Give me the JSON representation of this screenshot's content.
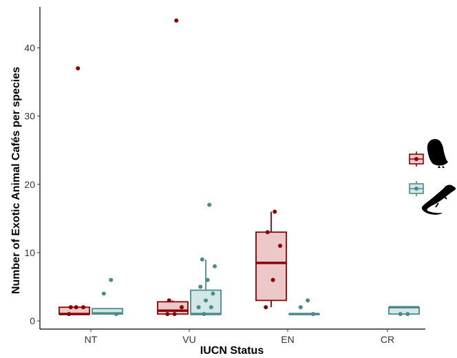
{
  "chart_data": {
    "type": "boxplot",
    "xlabel": "IUCN Status",
    "ylabel": "Number of Exotic Animal Cafés per species",
    "categories": [
      "NT",
      "VU",
      "EN",
      "CR"
    ],
    "ylim": [
      -1.2,
      46
    ],
    "yticks": [
      0,
      10,
      20,
      30,
      40
    ],
    "grid": false,
    "legend": "right",
    "colors": {
      "birds": "#8b0000",
      "reptiles": "#4a8a8a",
      "birds_fill": "#ecc8c8",
      "reptiles_fill": "#d3e8e6"
    },
    "series": [
      {
        "icon": "owl-icon",
        "color": "#8b0000",
        "boxes": [
          {
            "category": "NT",
            "q1": 1,
            "median": 1,
            "q3": 2,
            "whisker_low": 1,
            "whisker_high": 2
          },
          {
            "category": "VU",
            "q1": 1,
            "median": 1.5,
            "q3": 2.8,
            "whisker_low": 1,
            "whisker_high": 3
          },
          {
            "category": "EN",
            "q1": 3,
            "median": 8.5,
            "q3": 13,
            "whisker_low": 2,
            "whisker_high": 16
          }
        ],
        "points": [
          {
            "category": "NT",
            "y": 37
          },
          {
            "category": "NT",
            "y": 2
          },
          {
            "category": "NT",
            "y": 2
          },
          {
            "category": "NT",
            "y": 2
          },
          {
            "category": "NT",
            "y": 1
          },
          {
            "category": "VU",
            "y": 44
          },
          {
            "category": "VU",
            "y": 3
          },
          {
            "category": "VU",
            "y": 2
          },
          {
            "category": "VU",
            "y": 1
          },
          {
            "category": "VU",
            "y": 1
          },
          {
            "category": "EN",
            "y": 16
          },
          {
            "category": "EN",
            "y": 13
          },
          {
            "category": "EN",
            "y": 11
          },
          {
            "category": "EN",
            "y": 6
          },
          {
            "category": "EN",
            "y": 2
          }
        ]
      },
      {
        "icon": "lizard-icon",
        "color": "#4a8a8a",
        "boxes": [
          {
            "category": "NT",
            "q1": 1,
            "median": 1.1,
            "q3": 1.8,
            "whisker_low": 1,
            "whisker_high": 1.8
          },
          {
            "category": "VU",
            "q1": 1,
            "median": 1,
            "q3": 4.5,
            "whisker_low": 1,
            "whisker_high": 9
          },
          {
            "category": "EN",
            "q1": 1,
            "median": 1,
            "q3": 1,
            "whisker_low": 1,
            "whisker_high": 1
          },
          {
            "category": "CR",
            "q1": 1,
            "median": 2,
            "q3": 2,
            "whisker_low": 1,
            "whisker_high": 2
          }
        ],
        "points": [
          {
            "category": "NT",
            "y": 6
          },
          {
            "category": "NT",
            "y": 4
          },
          {
            "category": "NT",
            "y": 1
          },
          {
            "category": "VU",
            "y": 17
          },
          {
            "category": "VU",
            "y": 9
          },
          {
            "category": "VU",
            "y": 8
          },
          {
            "category": "VU",
            "y": 6
          },
          {
            "category": "VU",
            "y": 5
          },
          {
            "category": "VU",
            "y": 4
          },
          {
            "category": "VU",
            "y": 3
          },
          {
            "category": "VU",
            "y": 2
          },
          {
            "category": "VU",
            "y": 2
          },
          {
            "category": "VU",
            "y": 1
          },
          {
            "category": "EN",
            "y": 3
          },
          {
            "category": "EN",
            "y": 2
          },
          {
            "category": "EN",
            "y": 1
          },
          {
            "category": "CR",
            "y": 1
          },
          {
            "category": "CR",
            "y": 1
          }
        ]
      }
    ]
  }
}
